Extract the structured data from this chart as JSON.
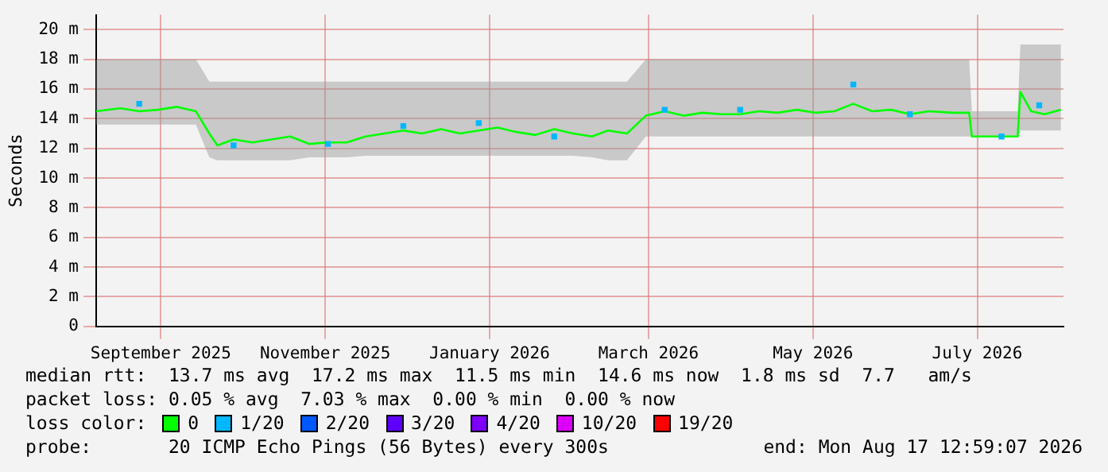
{
  "chart_data": {
    "type": "line",
    "ylabel": "Seconds",
    "legend_title": "loss color:",
    "legend": "bottom",
    "grid": true,
    "marker": "none",
    "line_style": "solid",
    "x": [
      "2025-08-23",
      "2025-09-01",
      "2025-09-08",
      "2025-09-15",
      "2025-09-22",
      "2025-09-29",
      "2025-10-04",
      "2025-10-07",
      "2025-10-13",
      "2025-10-20",
      "2025-10-27",
      "2025-11-03",
      "2025-11-10",
      "2025-11-17",
      "2025-11-24",
      "2025-12-01",
      "2025-12-08",
      "2025-12-15",
      "2025-12-22",
      "2025-12-29",
      "2026-01-05",
      "2026-01-12",
      "2026-01-19",
      "2026-01-26",
      "2026-02-02",
      "2026-02-09",
      "2026-02-16",
      "2026-02-23",
      "2026-03-01",
      "2026-03-08",
      "2026-03-15",
      "2026-03-22",
      "2026-03-29",
      "2026-04-05",
      "2026-04-12",
      "2026-04-19",
      "2026-04-26",
      "2026-05-03",
      "2026-05-10",
      "2026-05-17",
      "2026-05-24",
      "2026-05-31",
      "2026-06-07",
      "2026-06-14",
      "2026-06-21",
      "2026-06-28",
      "2026-07-07",
      "2026-07-13",
      "2026-07-14",
      "2026-07-20",
      "2026-07-31",
      "2026-08-01",
      "2026-08-05",
      "2026-08-10",
      "2026-08-16"
    ],
    "series": [
      {
        "name": "0",
        "color": "#00ff00",
        "values": [
          14.5,
          14.7,
          14.5,
          14.6,
          14.8,
          14.5,
          13.0,
          12.2,
          12.6,
          12.4,
          12.6,
          12.8,
          12.3,
          12.4,
          12.4,
          12.8,
          13.0,
          13.2,
          13.0,
          13.3,
          13.0,
          13.2,
          13.4,
          13.1,
          12.9,
          13.3,
          13.0,
          12.8,
          13.2,
          13.0,
          14.2,
          14.5,
          14.2,
          14.4,
          14.3,
          14.3,
          14.5,
          14.4,
          14.6,
          14.4,
          14.5,
          15.0,
          14.5,
          14.6,
          14.3,
          14.5,
          14.4,
          14.4,
          12.8,
          12.8,
          12.8,
          15.8,
          14.5,
          14.3,
          14.6
        ],
        "lower": [
          13.6,
          13.6,
          13.6,
          13.6,
          13.6,
          13.6,
          11.4,
          11.2,
          11.2,
          11.2,
          11.2,
          11.2,
          11.4,
          11.4,
          11.4,
          11.5,
          11.5,
          11.5,
          11.5,
          11.5,
          11.5,
          11.5,
          11.5,
          11.5,
          11.5,
          11.5,
          11.5,
          11.4,
          11.2,
          11.2,
          12.8,
          12.8,
          12.8,
          12.8,
          12.8,
          12.8,
          12.8,
          12.8,
          12.8,
          12.8,
          12.8,
          12.8,
          12.8,
          12.8,
          12.8,
          12.8,
          12.8,
          12.8,
          12.8,
          12.8,
          12.8,
          13.2,
          13.2,
          13.2,
          13.2
        ],
        "upper": [
          18.0,
          18.0,
          18.0,
          18.0,
          18.0,
          18.0,
          16.5,
          16.5,
          16.5,
          16.5,
          16.5,
          16.5,
          16.5,
          16.5,
          16.5,
          16.5,
          16.5,
          16.5,
          16.5,
          16.5,
          16.5,
          16.5,
          16.5,
          16.5,
          16.5,
          16.5,
          16.5,
          16.5,
          16.5,
          16.5,
          18.0,
          18.0,
          18.0,
          18.0,
          18.0,
          18.0,
          18.0,
          18.0,
          18.0,
          18.0,
          18.0,
          18.0,
          18.0,
          18.0,
          18.0,
          18.0,
          18.0,
          18.0,
          14.5,
          14.5,
          14.5,
          19.0,
          19.0,
          19.0,
          19.0
        ]
      },
      {
        "name": "1/20",
        "color": "#00b8ff",
        "type": "scatter",
        "marker": "square",
        "x": [
          "2025-09-08",
          "2025-10-13",
          "2025-11-17",
          "2025-12-15",
          "2026-01-12",
          "2026-02-09",
          "2026-03-22",
          "2026-04-19",
          "2026-05-31",
          "2026-06-21",
          "2026-07-25",
          "2026-08-08"
        ],
        "values": [
          15.0,
          12.2,
          12.3,
          13.5,
          13.7,
          12.8,
          14.6,
          14.6,
          16.3,
          14.3,
          12.8,
          14.9
        ]
      },
      {
        "name": "2/20",
        "color": "#0059ff",
        "values": [
          null,
          null,
          null,
          null,
          null,
          null,
          null,
          null,
          null,
          null,
          null,
          null,
          null,
          null,
          null,
          null,
          null,
          null,
          null,
          null,
          null,
          null,
          null,
          null,
          null,
          null,
          null,
          null,
          null,
          null,
          null,
          null,
          null,
          null,
          null,
          null,
          null,
          null,
          null,
          null,
          null,
          null,
          null,
          null,
          null,
          null,
          null,
          null,
          null,
          null,
          null,
          null,
          null,
          null,
          null
        ]
      },
      {
        "name": "3/20",
        "color": "#5e00ff",
        "values": [
          null,
          null,
          null,
          null,
          null,
          null,
          null,
          null,
          null,
          null,
          null,
          null,
          null,
          null,
          null,
          null,
          null,
          null,
          null,
          null,
          null,
          null,
          null,
          null,
          null,
          null,
          null,
          null,
          null,
          null,
          null,
          null,
          null,
          null,
          null,
          null,
          null,
          null,
          null,
          null,
          null,
          null,
          null,
          null,
          null,
          null,
          null,
          null,
          null,
          null,
          null,
          null,
          null,
          null,
          null
        ]
      },
      {
        "name": "4/20",
        "color": "#7e00ff",
        "values": [
          null,
          null,
          null,
          null,
          null,
          null,
          null,
          null,
          null,
          null,
          null,
          null,
          null,
          null,
          null,
          null,
          null,
          null,
          null,
          null,
          null,
          null,
          null,
          null,
          null,
          null,
          null,
          null,
          null,
          null,
          null,
          null,
          null,
          null,
          null,
          null,
          null,
          null,
          null,
          null,
          null,
          null,
          null,
          null,
          null,
          null,
          null,
          null,
          null,
          null,
          null,
          null,
          null,
          null,
          null
        ]
      },
      {
        "name": "10/20",
        "color": "#dd00ff",
        "values": [
          null,
          null,
          null,
          null,
          null,
          null,
          null,
          null,
          null,
          null,
          null,
          null,
          null,
          null,
          null,
          null,
          null,
          null,
          null,
          null,
          null,
          null,
          null,
          null,
          null,
          null,
          null,
          null,
          null,
          null,
          null,
          null,
          null,
          null,
          null,
          null,
          null,
          null,
          null,
          null,
          null,
          null,
          null,
          null,
          null,
          null,
          null,
          null,
          null,
          null,
          null,
          null,
          null,
          null,
          null
        ]
      },
      {
        "name": "19/20",
        "color": "#ff0000",
        "values": [
          null,
          null,
          null,
          null,
          null,
          null,
          null,
          null,
          null,
          null,
          null,
          null,
          null,
          null,
          null,
          null,
          null,
          null,
          null,
          null,
          null,
          null,
          null,
          null,
          null,
          null,
          null,
          null,
          null,
          null,
          null,
          null,
          null,
          null,
          null,
          null,
          null,
          null,
          null,
          null,
          null,
          null,
          null,
          null,
          null,
          null,
          null,
          null,
          null,
          null,
          null,
          null,
          null,
          null,
          null
        ]
      }
    ],
    "xlim": [
      "2025-08-23",
      "2026-08-17"
    ],
    "xticks": [
      {
        "value": "2025-09-16",
        "label": "September 2025"
      },
      {
        "value": "2025-11-16",
        "label": "November 2025"
      },
      {
        "value": "2026-01-16",
        "label": "January 2026"
      },
      {
        "value": "2026-03-16",
        "label": "March 2026"
      },
      {
        "value": "2026-05-16",
        "label": "May 2026"
      },
      {
        "value": "2026-07-16",
        "label": "July 2026"
      }
    ],
    "ylim": [
      0,
      21
    ],
    "yticks": [
      0,
      {
        "value": 2,
        "label": "2 m"
      },
      {
        "value": 4,
        "label": "4 m"
      },
      {
        "value": 6,
        "label": "6 m"
      },
      {
        "value": 8,
        "label": "8 m"
      },
      {
        "value": 10,
        "label": "10 m"
      },
      {
        "value": 12,
        "label": "12 m"
      },
      {
        "value": 14,
        "label": "14 m"
      },
      {
        "value": 16,
        "label": "16 m"
      },
      {
        "value": 18,
        "label": "18 m"
      },
      {
        "value": 20,
        "label": "20 m"
      }
    ],
    "annotations": [
      "median rtt:  13.7 ms avg  17.2 ms max  11.5 ms min  14.6 ms now  1.8 ms sd  7.7   am/s",
      "packet loss: 0.05 % avg  7.03 % max  0.00 % min  0.00 % now",
      "probe:       20 ICMP Echo Pings (56 Bytes) every 300s",
      "end: Mon Aug 17 12:59:07 2026"
    ]
  }
}
